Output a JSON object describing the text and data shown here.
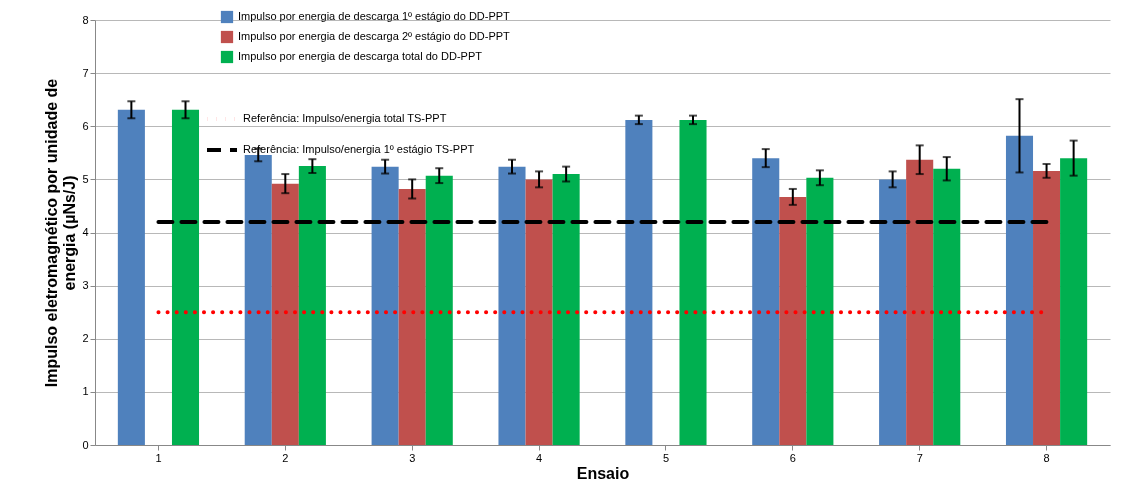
{
  "chart_data": {
    "type": "bar",
    "xlabel": "Ensaio",
    "ylabel": "Impulso eletromagnético  por unidade de energia (µNs/J)",
    "categories": [
      "1",
      "2",
      "3",
      "4",
      "5",
      "6",
      "7",
      "8"
    ],
    "series": [
      {
        "name": "Impulso por energia de descarga 1º estágio do DD-PPT",
        "color": "#4f81bd",
        "values": [
          6.31,
          5.46,
          5.24,
          5.24,
          6.12,
          5.4,
          5.0,
          5.82
        ],
        "errors": [
          0.16,
          0.12,
          0.13,
          0.13,
          0.08,
          0.17,
          0.15,
          0.69
        ]
      },
      {
        "name": "Impulso por energia de descarga 2º estágio do DD-PPT",
        "color": "#c0504d",
        "values": [
          null,
          4.92,
          4.82,
          5.0,
          null,
          4.67,
          5.37,
          5.16
        ],
        "errors": [
          null,
          0.18,
          0.18,
          0.15,
          null,
          0.15,
          0.27,
          0.13
        ]
      },
      {
        "name": "Impulso por energia de descarga total do DD-PPT",
        "color": "#00b050",
        "values": [
          6.31,
          5.25,
          5.07,
          5.1,
          6.12,
          5.03,
          5.2,
          5.4
        ],
        "errors": [
          0.16,
          0.13,
          0.14,
          0.14,
          0.08,
          0.14,
          0.22,
          0.33
        ]
      },
      {
        "name": "Referência: Impulso/energia total TS-PPT",
        "type": "line",
        "color": "#ff0000",
        "line_style": "dotted",
        "values": [
          2.5,
          2.5,
          2.5,
          2.5,
          2.5,
          2.5,
          2.5,
          2.5
        ]
      },
      {
        "name": "Referência: Impulso/energia 1º estágio  TS-PPT",
        "type": "line",
        "color": "#000000",
        "line_style": "dashed",
        "values": [
          4.2,
          4.2,
          4.2,
          4.2,
          4.2,
          4.2,
          4.2,
          4.2
        ]
      }
    ],
    "ylim": [
      0,
      8
    ],
    "yticks": [
      0,
      1,
      2,
      3,
      4,
      5,
      6,
      7,
      8
    ],
    "grid": "y",
    "legend": "top",
    "marker": "none"
  }
}
